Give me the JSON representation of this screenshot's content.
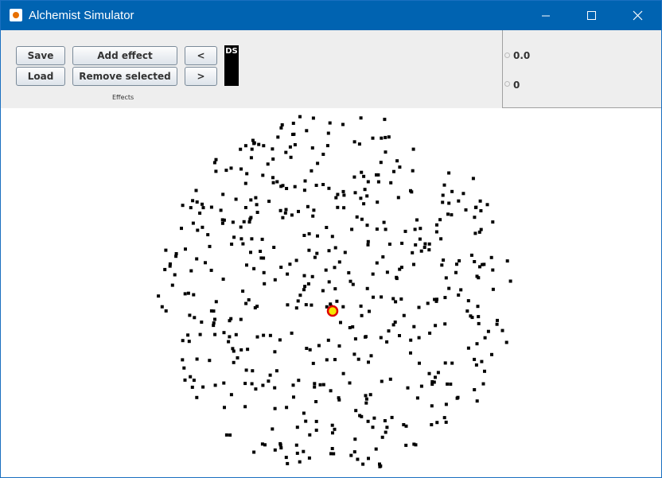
{
  "window": {
    "title": "Alchemist Simulator"
  },
  "toolbar": {
    "save": "Save",
    "load": "Load",
    "add_effect": "Add effect",
    "remove_selected": "Remove selected",
    "previous": "<",
    "next": ">",
    "ds": "DS",
    "effects_label": "Effects"
  },
  "status": {
    "time": "0.0",
    "step": "0"
  }
}
